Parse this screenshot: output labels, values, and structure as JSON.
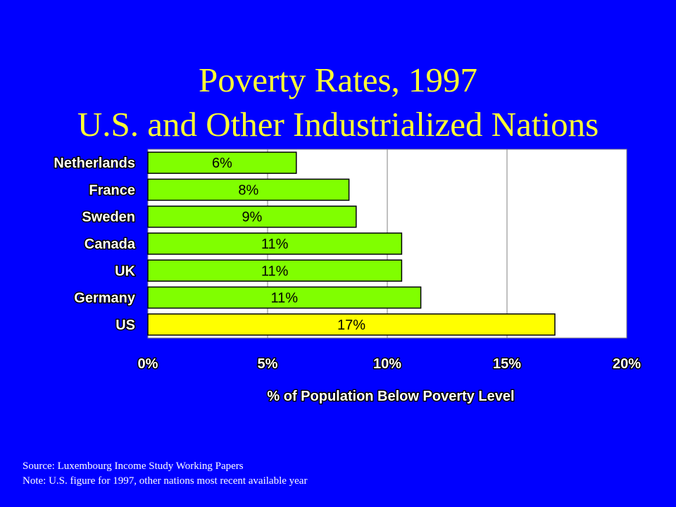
{
  "slide": {
    "title_line1": "Poverty Rates, 1997",
    "title_line2": "U.S. and Other Industrialized Nations",
    "source": "Source: Luxembourg Income Study Working Papers",
    "note": "Note: U.S. figure for 1997, other nations most recent available year"
  },
  "colors": {
    "background": "#0000FF",
    "title": "#FFFF33",
    "bar_default": "#80FF00",
    "bar_highlight": "#FFFF00",
    "plot_background": "#FFFFFF"
  },
  "chart_data": {
    "type": "bar",
    "orientation": "horizontal",
    "categories": [
      "Netherlands",
      "France",
      "Sweden",
      "Canada",
      "UK",
      "Germany",
      "US"
    ],
    "values": [
      6.2,
      8.4,
      8.7,
      10.6,
      10.6,
      11.4,
      17.0
    ],
    "data_labels": [
      "6%",
      "8%",
      "9%",
      "11%",
      "11%",
      "11%",
      "17%"
    ],
    "highlight": "US",
    "xlabel": "% of Population Below Poverty Level",
    "xlim": [
      0,
      20
    ],
    "x_ticks": [
      0,
      5,
      10,
      15,
      20
    ],
    "x_tick_labels": [
      "0%",
      "5%",
      "10%",
      "15%",
      "20%"
    ],
    "grid": true
  }
}
